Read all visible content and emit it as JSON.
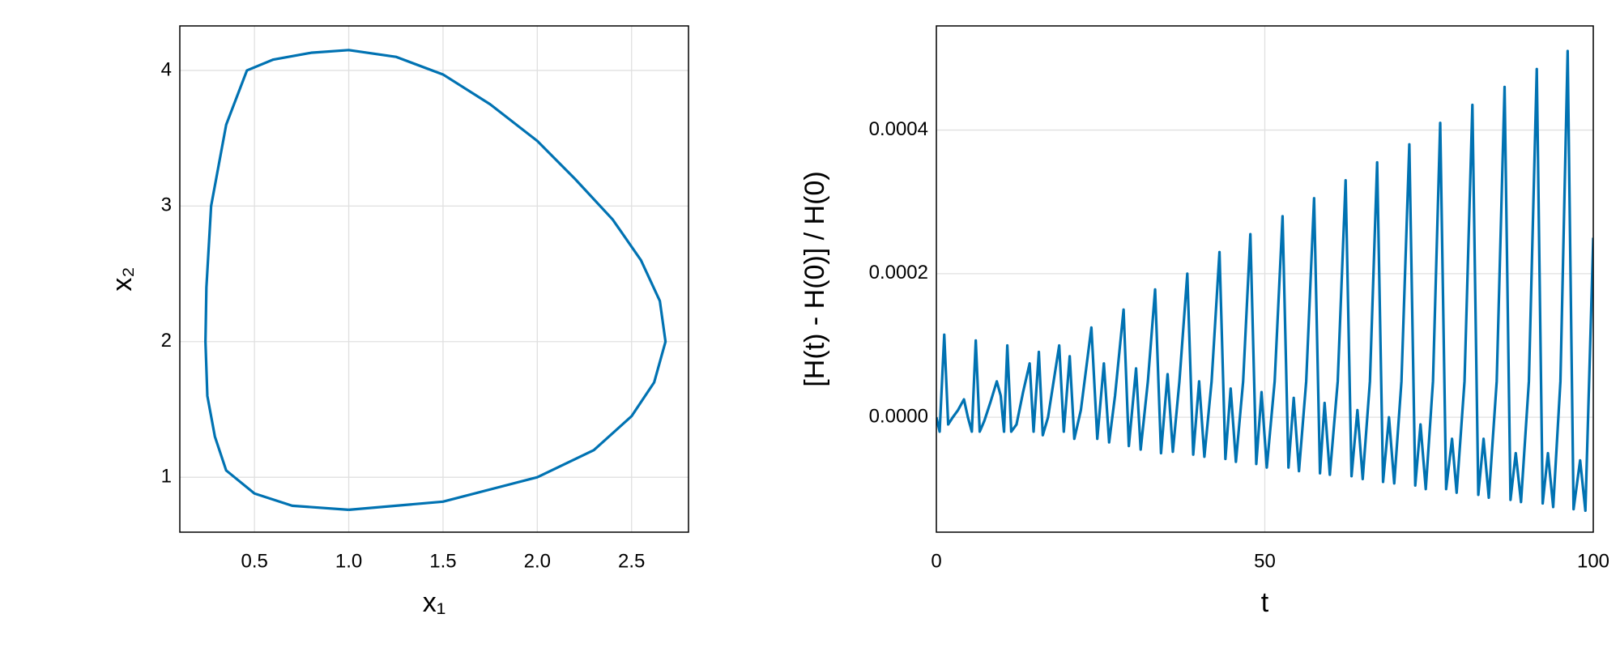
{
  "chart_data": [
    {
      "type": "line",
      "xlabel": "x₁",
      "ylabel": "x₂",
      "color": "#0072b2",
      "grid": true,
      "xlim": [
        0.104,
        2.802
      ],
      "ylim": [
        0.595,
        4.328
      ],
      "xticks": [
        {
          "value": 0.5,
          "label": "0.5"
        },
        {
          "value": 1.0,
          "label": "1.0"
        },
        {
          "value": 1.5,
          "label": "1.5"
        },
        {
          "value": 2.0,
          "label": "2.0"
        },
        {
          "value": 2.5,
          "label": "2.5"
        }
      ],
      "yticks": [
        1,
        2,
        3,
        4
      ],
      "x": [
        1.0,
        1.5,
        2.0,
        2.3,
        2.5,
        2.62,
        2.68,
        2.65,
        2.55,
        2.4,
        2.2,
        2.0,
        1.75,
        1.5,
        1.25,
        1.0,
        0.8,
        0.6,
        0.46,
        0.35,
        0.27,
        0.245,
        0.24,
        0.25,
        0.29,
        0.35,
        0.5,
        0.7,
        1.0
      ],
      "values": [
        0.76,
        0.82,
        1.0,
        1.2,
        1.45,
        1.7,
        2.0,
        2.3,
        2.6,
        2.9,
        3.2,
        3.48,
        3.75,
        3.97,
        4.1,
        4.15,
        4.13,
        4.08,
        4.0,
        3.6,
        3.0,
        2.4,
        2.0,
        1.6,
        1.3,
        1.05,
        0.88,
        0.79,
        0.76
      ]
    },
    {
      "type": "line",
      "xlabel": "t",
      "ylabel": "[H(t) - H(0)] / H(0)",
      "color": "#0072b2",
      "grid": true,
      "xlim": [
        0,
        100
      ],
      "ylim": [
        -0.00016,
        0.000545
      ],
      "xticks": [
        0,
        50,
        100
      ],
      "yticks": [
        {
          "value": 0,
          "label": "0.0000"
        },
        {
          "value": 0.0002,
          "label": "0.0002"
        },
        {
          "value": 0.0004,
          "label": "0.0004"
        }
      ],
      "x": [
        0,
        0.5,
        1.2,
        1.8,
        2.5,
        3.3,
        4.2,
        4.8,
        5.4,
        6.0,
        6.6,
        7.3,
        8.2,
        9.2,
        9.8,
        10.3,
        10.8,
        11.4,
        12.2,
        13.2,
        14.2,
        14.8,
        15.6,
        16.2,
        17.0,
        18.7,
        19.4,
        20.3,
        21.0,
        22.0,
        23.6,
        24.5,
        25.5,
        26.3,
        27.2,
        28.5,
        29.3,
        30.4,
        31.1,
        32.2,
        33.3,
        34.2,
        35.2,
        36.0,
        37.0,
        38.2,
        39.1,
        40.0,
        40.8,
        41.9,
        43.1,
        44.0,
        44.8,
        45.6,
        46.7,
        47.8,
        48.7,
        49.5,
        50.3,
        51.5,
        52.7,
        53.6,
        54.4,
        55.2,
        56.3,
        57.5,
        58.4,
        59.1,
        59.9,
        61.1,
        62.3,
        63.2,
        64.1,
        64.9,
        66.0,
        67.1,
        68.0,
        68.9,
        69.7,
        70.8,
        72.0,
        72.9,
        73.7,
        74.5,
        75.6,
        76.7,
        77.6,
        78.5,
        79.2,
        80.4,
        81.6,
        82.5,
        83.3,
        84.1,
        85.3,
        86.5,
        87.4,
        88.2,
        89.0,
        90.2,
        91.4,
        92.3,
        93.1,
        93.9,
        95.0,
        96.1,
        97.0,
        98.0,
        98.8,
        100
      ],
      "values": [
        0,
        -2e-05,
        0.000115,
        -1e-05,
        0.0,
        1e-05,
        2.5e-05,
        0.0,
        -2e-05,
        0.000107,
        -2e-05,
        -5e-06,
        2e-05,
        5e-05,
        3e-05,
        -2e-05,
        0.0001,
        -2e-05,
        -1e-05,
        3.5e-05,
        7.5e-05,
        -2e-05,
        9.1e-05,
        -2.5e-05,
        0.0,
        0.0001,
        -2e-05,
        8.5e-05,
        -3e-05,
        1e-05,
        0.000125,
        -3e-05,
        7.5e-05,
        -3.5e-05,
        3e-05,
        0.00015,
        -4e-05,
        6.8e-05,
        -4.5e-05,
        5e-05,
        0.000178,
        -5e-05,
        6e-05,
        -4.8e-05,
        5e-05,
        0.0002,
        -5.2e-05,
        5e-05,
        -5.5e-05,
        5e-05,
        0.00023,
        -5.8e-05,
        4e-05,
        -6.2e-05,
        5e-05,
        0.000255,
        -6.5e-05,
        3.5e-05,
        -7e-05,
        5e-05,
        0.00028,
        -7e-05,
        2.7e-05,
        -7.5e-05,
        5e-05,
        0.000305,
        -7.8e-05,
        2e-05,
        -8e-05,
        5e-05,
        0.00033,
        -8.2e-05,
        1e-05,
        -8.6e-05,
        5e-05,
        0.000355,
        -9e-05,
        0.0,
        -9.2e-05,
        5e-05,
        0.00038,
        -9.5e-05,
        -1e-05,
        -0.0001,
        5e-05,
        0.00041,
        -0.0001,
        -3e-05,
        -0.000105,
        5e-05,
        0.000435,
        -0.000108,
        -3e-05,
        -0.000112,
        5e-05,
        0.00046,
        -0.000115,
        -5e-05,
        -0.000118,
        5e-05,
        0.000485,
        -0.00012,
        -5e-05,
        -0.000125,
        5e-05,
        0.00051,
        -0.000128,
        -6e-05,
        -0.00013,
        0.00025
      ]
    }
  ]
}
